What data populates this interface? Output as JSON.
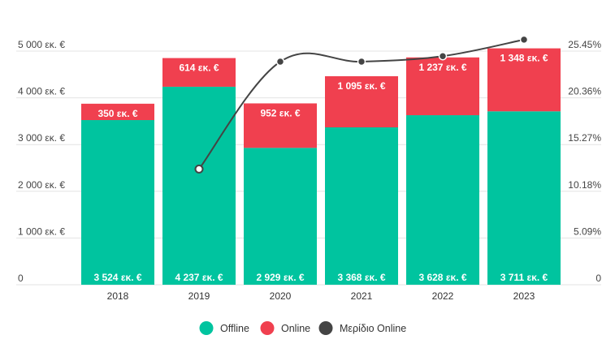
{
  "chart_data": {
    "type": "bar",
    "stacked": true,
    "categories": [
      "2018",
      "2019",
      "2020",
      "2021",
      "2022",
      "2023"
    ],
    "series": [
      {
        "name": "Offline",
        "color": "#00c49f",
        "values": [
          3524,
          4237,
          2929,
          3368,
          3628,
          3711
        ],
        "labels": [
          "3 524 εκ. €",
          "4 237 εκ. €",
          "2 929 εκ. €",
          "3 368 εκ. €",
          "3 628 εκ. €",
          "3 711 εκ. €"
        ]
      },
      {
        "name": "Online",
        "color": "#f0404f",
        "values": [
          350,
          614,
          952,
          1095,
          1237,
          1348
        ],
        "labels": [
          "350 εκ. €",
          "614 εκ. €",
          "952 εκ. €",
          "1 095 εκ. €",
          "1 237 εκ. €",
          "1 348 εκ. €"
        ]
      }
    ],
    "line_series": {
      "name": "Μερίδιο Online",
      "color": "#444444",
      "axis": "right",
      "values": [
        null,
        12.6,
        24.3,
        24.3,
        24.9,
        26.7
      ]
    },
    "y_left": {
      "ticks": [
        0,
        1000,
        2000,
        3000,
        4000,
        5000
      ],
      "tick_labels": [
        "0",
        "1 000 εκ. €",
        "2 000 εκ. €",
        "3 000 εκ. €",
        "4 000 εκ. €",
        "5 000 εκ. €"
      ],
      "range": [
        0,
        5000
      ]
    },
    "y_right": {
      "ticks": [
        0,
        5.09,
        10.18,
        15.27,
        20.36,
        25.45
      ],
      "tick_labels": [
        "0",
        "5.09%",
        "10.18%",
        "15.27%",
        "20.36%",
        "25.45%"
      ],
      "range": [
        0,
        25.45
      ]
    },
    "grid": true,
    "legend_position": "bottom-center",
    "title": "",
    "xlabel": "",
    "ylabel": ""
  }
}
